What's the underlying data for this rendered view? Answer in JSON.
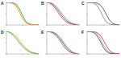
{
  "chart_data": [
    {
      "type": "line",
      "title": "A",
      "tick_labels": false,
      "xlim": [
        0,
        100
      ],
      "ylim": [
        0,
        1
      ],
      "xticks": [
        0,
        50,
        100
      ],
      "yticks": [
        0,
        0.5,
        1
      ],
      "x": [
        0,
        10,
        20,
        30,
        40,
        50,
        60,
        70,
        80,
        90,
        100
      ],
      "series": [
        {
          "color": "#3a9e3a",
          "values": [
            1,
            1,
            0.98,
            0.92,
            0.72,
            0.42,
            0.16,
            0.05,
            0.02,
            0,
            0
          ]
        },
        {
          "color": "#f08a24",
          "values": [
            1,
            0.99,
            0.95,
            0.84,
            0.58,
            0.28,
            0.1,
            0.03,
            0.01,
            0,
            0
          ]
        }
      ]
    },
    {
      "type": "line",
      "title": "B",
      "tick_labels": false,
      "xlim": [
        0,
        100
      ],
      "ylim": [
        0,
        1
      ],
      "xticks": [
        0,
        50,
        100
      ],
      "yticks": [
        0,
        0.5,
        1
      ],
      "x": [
        0,
        10,
        20,
        30,
        40,
        50,
        60,
        70,
        80,
        90,
        100
      ],
      "series": [
        {
          "color": "#4a7fc1",
          "values": [
            1,
            0.98,
            0.9,
            0.75,
            0.55,
            0.35,
            0.2,
            0.1,
            0.05,
            0.02,
            0
          ]
        },
        {
          "color": "#d9453f",
          "values": [
            1,
            0.96,
            0.85,
            0.66,
            0.45,
            0.27,
            0.14,
            0.07,
            0.03,
            0.01,
            0
          ]
        },
        {
          "color": "#999999",
          "values": [
            1,
            0.99,
            0.94,
            0.82,
            0.64,
            0.44,
            0.27,
            0.14,
            0.07,
            0.03,
            0.01
          ]
        }
      ]
    },
    {
      "type": "line",
      "title": "C",
      "tick_labels": false,
      "xlim": [
        0,
        100
      ],
      "ylim": [
        0,
        1
      ],
      "xticks": [
        0,
        50,
        100
      ],
      "yticks": [
        0,
        0.5,
        1
      ],
      "x": [
        0,
        10,
        20,
        30,
        40,
        50,
        60,
        70,
        80,
        90,
        100
      ],
      "series": [
        {
          "color": "#888888",
          "values": [
            1,
            1,
            0.97,
            0.88,
            0.65,
            0.35,
            0.12,
            0.04,
            0.01,
            0,
            0
          ]
        },
        {
          "color": "#3d5a80",
          "values": [
            1,
            1,
            1,
            0.97,
            0.9,
            0.72,
            0.45,
            0.2,
            0.06,
            0.01,
            0
          ]
        }
      ]
    },
    {
      "type": "line",
      "title": "D",
      "tick_labels": false,
      "xlim": [
        0,
        100
      ],
      "ylim": [
        0,
        1
      ],
      "xticks": [
        0,
        50,
        100
      ],
      "yticks": [
        0,
        0.5,
        1
      ],
      "x": [
        0,
        10,
        20,
        30,
        40,
        50,
        60,
        70,
        80,
        90,
        100
      ],
      "series": [
        {
          "color": "#b5b83a",
          "values": [
            1,
            0.97,
            0.9,
            0.78,
            0.6,
            0.42,
            0.26,
            0.14,
            0.07,
            0.03,
            0.01
          ]
        },
        {
          "color": "#5aa55a",
          "values": [
            1,
            0.95,
            0.84,
            0.68,
            0.5,
            0.33,
            0.2,
            0.1,
            0.05,
            0.02,
            0
          ]
        }
      ]
    },
    {
      "type": "line",
      "title": "E",
      "tick_labels": false,
      "xlim": [
        0,
        100
      ],
      "ylim": [
        0,
        1
      ],
      "xticks": [
        0,
        50,
        100
      ],
      "yticks": [
        0,
        0.5,
        1
      ],
      "x": [
        0,
        10,
        20,
        30,
        40,
        50,
        60,
        70,
        80,
        90,
        100
      ],
      "series": [
        {
          "color": "#4a7fc1",
          "values": [
            1,
            0.99,
            0.95,
            0.86,
            0.7,
            0.5,
            0.3,
            0.15,
            0.06,
            0.02,
            0
          ]
        },
        {
          "color": "#d9453f",
          "values": [
            1,
            0.98,
            0.92,
            0.8,
            0.62,
            0.4,
            0.22,
            0.1,
            0.04,
            0.01,
            0
          ]
        },
        {
          "color": "#999999",
          "values": [
            1,
            1,
            0.97,
            0.9,
            0.76,
            0.57,
            0.37,
            0.2,
            0.09,
            0.03,
            0.01
          ]
        }
      ]
    },
    {
      "type": "line",
      "title": "F",
      "tick_labels": false,
      "xlim": [
        0,
        100
      ],
      "ylim": [
        0,
        1
      ],
      "xticks": [
        0,
        50,
        100
      ],
      "yticks": [
        0,
        0.5,
        1
      ],
      "x": [
        0,
        10,
        20,
        30,
        40,
        50,
        60,
        70,
        80,
        90,
        100
      ],
      "series": [
        {
          "color": "#aaaaaa",
          "values": [
            1,
            1,
            0.98,
            0.9,
            0.7,
            0.42,
            0.18,
            0.06,
            0.02,
            0,
            0
          ]
        },
        {
          "color": "#555555",
          "values": [
            1,
            0.99,
            0.95,
            0.82,
            0.58,
            0.3,
            0.11,
            0.03,
            0.01,
            0,
            0
          ]
        },
        {
          "color": "#d9453f",
          "values": [
            1,
            1,
            0.99,
            0.95,
            0.84,
            0.62,
            0.36,
            0.15,
            0.05,
            0.01,
            0
          ]
        }
      ]
    }
  ]
}
